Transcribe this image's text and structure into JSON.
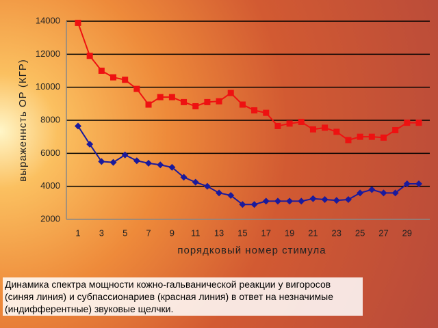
{
  "chart_data": {
    "type": "line",
    "y_label": "выраженнсть ОР (КГР)",
    "x_label": "порядковый номер стимула",
    "caption": "Динамика спектра мощности кожно-гальванической реакции  у вигоросов (синяя линия) и субпассионариев  (красная линия) в  ответ на незначимые (индифферентные)  звуковые щелчки.",
    "categories": [
      1,
      null,
      3,
      null,
      5,
      null,
      7,
      null,
      9,
      null,
      11,
      null,
      13,
      null,
      15,
      null,
      17,
      null,
      19,
      null,
      21,
      null,
      23,
      null,
      25,
      null,
      27,
      null,
      29,
      null
    ],
    "series": [
      {
        "color": "#ee1111",
        "marker": "square",
        "values": [
          13900,
          11900,
          11000,
          10600,
          10450,
          9900,
          8950,
          9400,
          9400,
          9100,
          8850,
          9100,
          9150,
          9650,
          8950,
          8600,
          8450,
          7650,
          7800,
          7900,
          7450,
          7550,
          7300,
          6800,
          7000,
          7000,
          6950,
          7400,
          7850,
          7850
        ]
      },
      {
        "color": "#1a1a9c",
        "marker": "diamond",
        "values": [
          7650,
          6550,
          5500,
          5450,
          5900,
          5550,
          5400,
          5300,
          5150,
          4550,
          4250,
          4000,
          3600,
          3450,
          2900,
          2900,
          3100,
          3100,
          3100,
          3100,
          3250,
          3200,
          3150,
          3200,
          3600,
          3800,
          3600,
          3600,
          4150,
          4150
        ]
      }
    ],
    "ylim": [
      2000,
      14000
    ],
    "yticks": [
      2000,
      4000,
      6000,
      8000,
      10000,
      12000,
      14000
    ],
    "grid": true
  }
}
